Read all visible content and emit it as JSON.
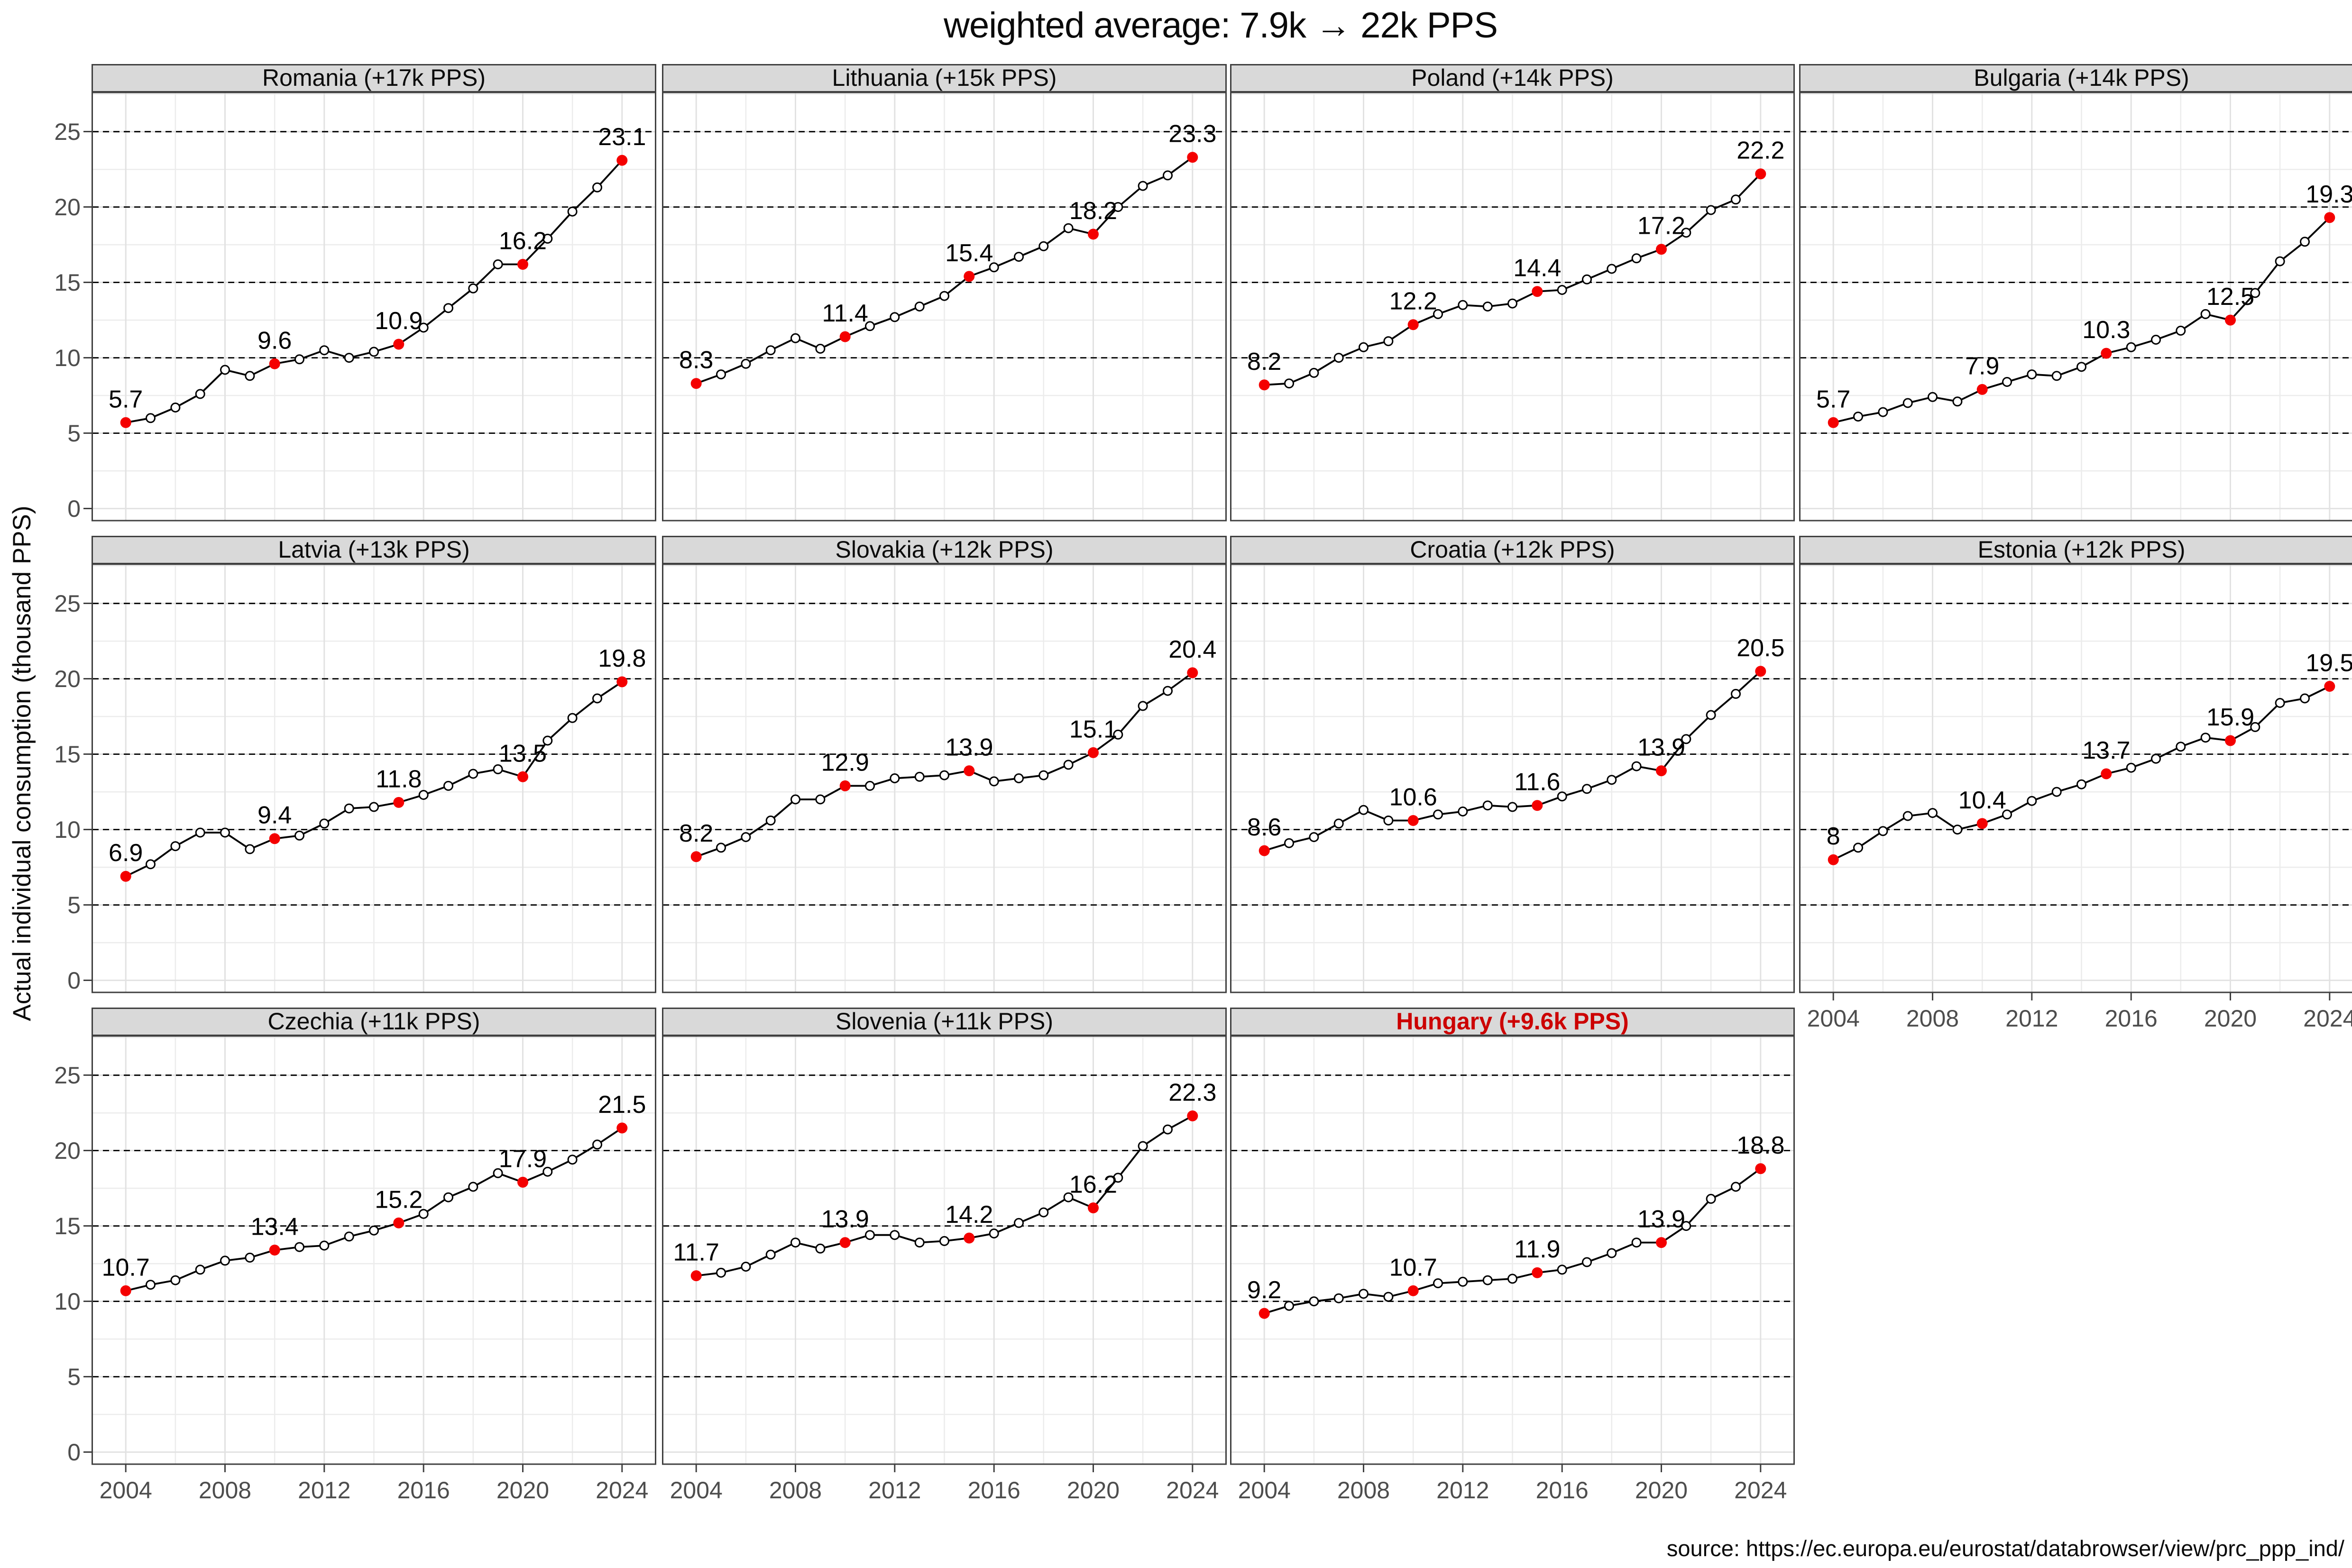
{
  "title": "weighted average: 7.9k → 22k PPS",
  "y_axis_label": "Actual individual consumption (thousand PPS)",
  "source": "source: https://ec.europa.eu/eurostat/databrowser/view/prc_ppp_ind/",
  "colors": {
    "strip_bg": "#d9d9d9",
    "panel_border": "#404040",
    "highlight_title_red": "#cc0000",
    "point_red": "#f40000",
    "line_black": "#000000",
    "axis_text_gray": "#4d4d4d",
    "grid_major": "#e2e2e2",
    "grid_minor": "#ececec"
  },
  "chart_data": {
    "type": "line",
    "x_label": "",
    "y_label": "Actual individual consumption (thousand PPS)",
    "x_ticks": [
      2004,
      2008,
      2012,
      2016,
      2020,
      2024
    ],
    "x_tick_labels": [
      "2004",
      "2008",
      "2012",
      "2016",
      "2020",
      "2024"
    ],
    "y_ticks": [
      0,
      5,
      10,
      15,
      20,
      25
    ],
    "y_tick_labels": [
      "0",
      "5",
      "10",
      "15",
      "20",
      "25"
    ],
    "dashed_reference_lines": [
      5,
      10,
      15,
      20,
      25
    ],
    "years": [
      2004,
      2005,
      2006,
      2007,
      2008,
      2009,
      2010,
      2011,
      2012,
      2013,
      2014,
      2015,
      2016,
      2017,
      2018,
      2019,
      2020,
      2021,
      2022,
      2023,
      2024
    ],
    "labeled_years": [
      2004,
      2010,
      2015,
      2020,
      2024
    ],
    "facets": [
      {
        "country": "Romania",
        "header": "Romania (+17k PPS)",
        "highlight": false,
        "values": [
          5.7,
          6.0,
          6.7,
          7.6,
          9.2,
          8.8,
          9.6,
          9.9,
          10.5,
          10.0,
          10.4,
          10.9,
          12.0,
          13.3,
          14.6,
          16.2,
          16.2,
          17.9,
          19.7,
          21.3,
          23.1
        ],
        "point_labels": {
          "2004": "5.7",
          "2010": "9.6",
          "2015": "10.9",
          "2020": "16.2",
          "2024": "23.1"
        }
      },
      {
        "country": "Lithuania",
        "header": "Lithuania (+15k PPS)",
        "highlight": false,
        "values": [
          8.3,
          8.9,
          9.6,
          10.5,
          11.3,
          10.6,
          11.4,
          12.1,
          12.7,
          13.4,
          14.1,
          15.4,
          16.0,
          16.7,
          17.4,
          18.6,
          18.2,
          20.0,
          21.4,
          22.1,
          23.3
        ],
        "point_labels": {
          "2004": "8.3",
          "2010": "11.4",
          "2015": "15.4",
          "2020": "18.2",
          "2024": "23.3"
        }
      },
      {
        "country": "Poland",
        "header": "Poland (+14k PPS)",
        "highlight": false,
        "values": [
          8.2,
          8.3,
          9.0,
          10.0,
          10.7,
          11.1,
          12.2,
          12.9,
          13.5,
          13.4,
          13.6,
          14.4,
          14.5,
          15.2,
          15.9,
          16.6,
          17.2,
          18.3,
          19.8,
          20.5,
          22.2
        ],
        "point_labels": {
          "2004": "8.2",
          "2010": "12.2",
          "2015": "14.4",
          "2020": "17.2",
          "2024": "22.2"
        }
      },
      {
        "country": "Bulgaria",
        "header": "Bulgaria (+14k PPS)",
        "highlight": false,
        "values": [
          5.7,
          6.1,
          6.4,
          7.0,
          7.4,
          7.1,
          7.9,
          8.4,
          8.9,
          8.8,
          9.4,
          10.3,
          10.7,
          11.2,
          11.8,
          12.9,
          12.5,
          14.3,
          16.4,
          17.7,
          19.3
        ],
        "point_labels": {
          "2004": "5.7",
          "2010": "7.9",
          "2015": "10.3",
          "2020": "12.5",
          "2024": "19.3"
        }
      },
      {
        "country": "Latvia",
        "header": "Latvia (+13k PPS)",
        "highlight": false,
        "values": [
          6.9,
          7.7,
          8.9,
          9.8,
          9.8,
          8.7,
          9.4,
          9.6,
          10.4,
          11.4,
          11.5,
          11.8,
          12.3,
          12.9,
          13.7,
          14.0,
          13.5,
          15.9,
          17.4,
          18.7,
          19.8
        ],
        "point_labels": {
          "2004": "6.9",
          "2010": "9.4",
          "2015": "11.8",
          "2020": "13.5",
          "2024": "19.8"
        }
      },
      {
        "country": "Slovakia",
        "header": "Slovakia (+12k PPS)",
        "highlight": false,
        "values": [
          8.2,
          8.8,
          9.5,
          10.6,
          12.0,
          12.0,
          12.9,
          12.9,
          13.4,
          13.5,
          13.6,
          13.9,
          13.2,
          13.4,
          13.6,
          14.3,
          15.1,
          16.3,
          18.2,
          19.2,
          20.4
        ],
        "point_labels": {
          "2004": "8.2",
          "2010": "12.9",
          "2015": "13.9",
          "2020": "15.1",
          "2024": "20.4"
        }
      },
      {
        "country": "Croatia",
        "header": "Croatia (+12k PPS)",
        "highlight": false,
        "values": [
          8.6,
          9.1,
          9.5,
          10.4,
          11.3,
          10.6,
          10.6,
          11.0,
          11.2,
          11.6,
          11.5,
          11.6,
          12.2,
          12.7,
          13.3,
          14.2,
          13.9,
          16.0,
          17.6,
          19.0,
          20.5
        ],
        "point_labels": {
          "2004": "8.6",
          "2010": "10.6",
          "2015": "11.6",
          "2020": "13.9",
          "2024": "20.5"
        }
      },
      {
        "country": "Estonia",
        "header": "Estonia (+12k PPS)",
        "highlight": false,
        "values": [
          8.0,
          8.8,
          9.9,
          10.9,
          11.1,
          10.0,
          10.4,
          11.0,
          11.9,
          12.5,
          13.0,
          13.7,
          14.1,
          14.7,
          15.5,
          16.1,
          15.9,
          16.8,
          18.4,
          18.7,
          19.5
        ],
        "point_labels": {
          "2004": "8",
          "2010": "10.4",
          "2015": "13.7",
          "2020": "15.9",
          "2024": "19.5"
        }
      },
      {
        "country": "Czechia",
        "header": "Czechia (+11k PPS)",
        "highlight": false,
        "values": [
          10.7,
          11.1,
          11.4,
          12.1,
          12.7,
          12.9,
          13.4,
          13.6,
          13.7,
          14.3,
          14.7,
          15.2,
          15.8,
          16.9,
          17.6,
          18.5,
          17.9,
          18.6,
          19.4,
          20.4,
          21.5
        ],
        "point_labels": {
          "2004": "10.7",
          "2010": "13.4",
          "2015": "15.2",
          "2020": "17.9",
          "2024": "21.5"
        }
      },
      {
        "country": "Slovenia",
        "header": "Slovenia (+11k PPS)",
        "highlight": false,
        "values": [
          11.7,
          11.9,
          12.3,
          13.1,
          13.9,
          13.5,
          13.9,
          14.4,
          14.4,
          13.9,
          14.0,
          14.2,
          14.5,
          15.2,
          15.9,
          16.9,
          16.2,
          18.2,
          20.3,
          21.4,
          22.3
        ],
        "point_labels": {
          "2004": "11.7",
          "2010": "13.9",
          "2015": "14.2",
          "2020": "16.2",
          "2024": "22.3"
        }
      },
      {
        "country": "Hungary",
        "header": "Hungary (+9.6k PPS)",
        "highlight": true,
        "values": [
          9.2,
          9.7,
          10.0,
          10.2,
          10.5,
          10.3,
          10.7,
          11.2,
          11.3,
          11.4,
          11.5,
          11.9,
          12.1,
          12.6,
          13.2,
          13.9,
          13.9,
          15.0,
          16.8,
          17.6,
          18.8
        ],
        "point_labels": {
          "2004": "9.2",
          "2010": "10.7",
          "2015": "11.9",
          "2020": "13.9",
          "2024": "18.8"
        }
      }
    ]
  }
}
